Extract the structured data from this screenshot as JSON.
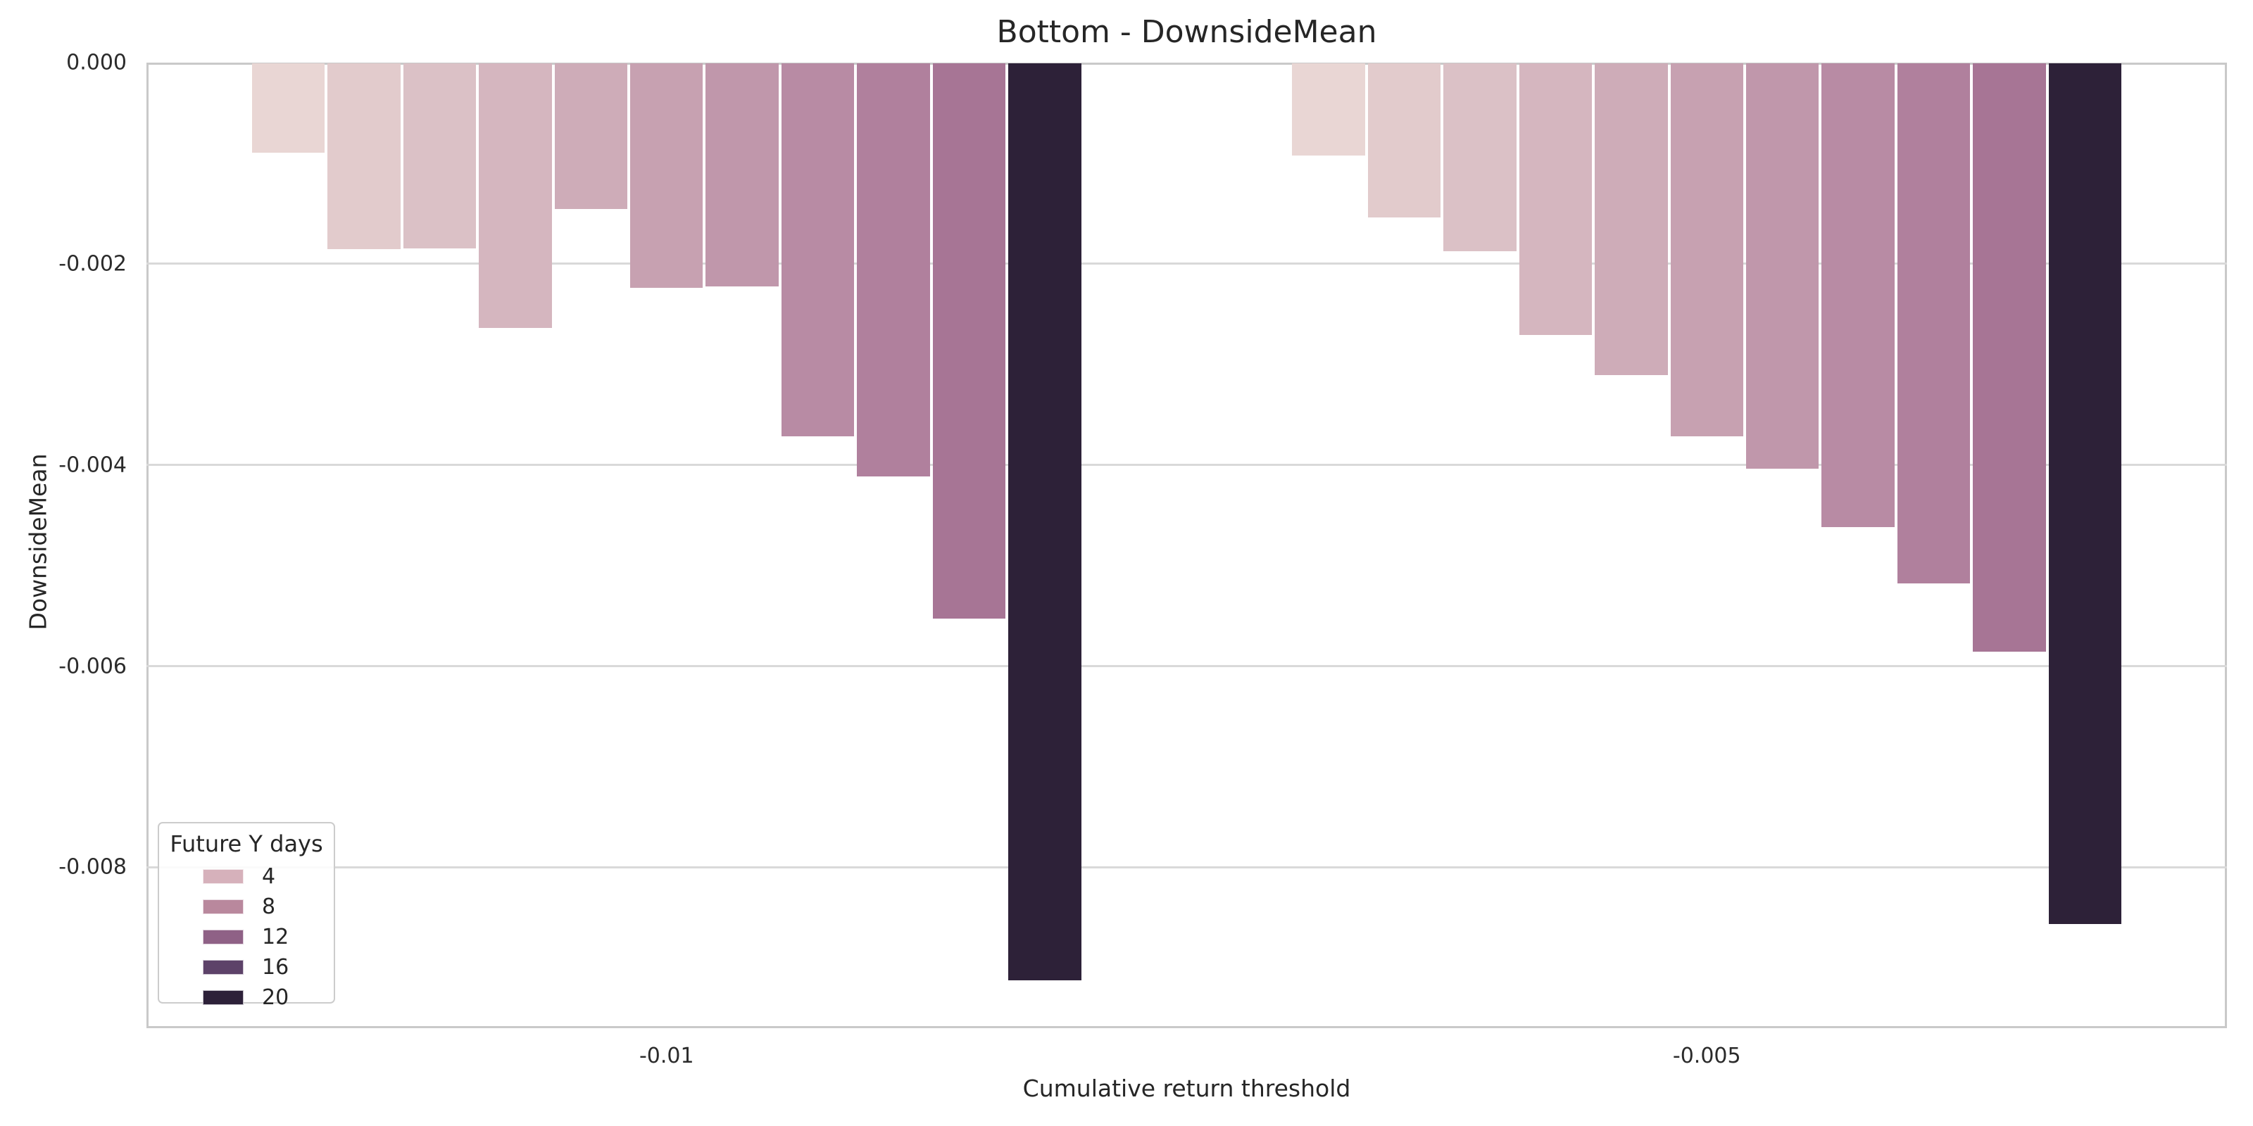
{
  "title": "Bottom - DownsideMean",
  "axes": {
    "x_label": "Cumulative return threshold",
    "y_label": "DownsideMean",
    "x_tick_labels": [
      "-0.01",
      "-0.005"
    ],
    "y_tick_labels": [
      "0.000",
      "-0.002",
      "-0.004",
      "-0.006",
      "-0.008"
    ]
  },
  "legend": {
    "title": "Future Y days",
    "entries": [
      {
        "label": "4",
        "color": "#d6b1bb"
      },
      {
        "label": "8",
        "color": "#b9889d"
      },
      {
        "label": "12",
        "color": "#8f6186"
      },
      {
        "label": "16",
        "color": "#5d4269"
      },
      {
        "label": "20",
        "color": "#2d2139"
      }
    ]
  },
  "chart_data": {
    "type": "bar",
    "title": "Bottom - DownsideMean",
    "xlabel": "Cumulative return threshold",
    "ylabel": "DownsideMean",
    "categories": [
      "-0.01",
      "-0.005"
    ],
    "legend_title": "Future Y days",
    "legend_entries": [
      "4",
      "8",
      "12",
      "16",
      "20"
    ],
    "legend_position": "lower left",
    "grid": "horizontal",
    "ylim": [
      -0.0096,
      0
    ],
    "yticks": [
      0,
      -0.002,
      -0.004,
      -0.006,
      -0.008
    ],
    "series": [
      {
        "color": "#e9d6d4",
        "values": [
          -0.00089,
          -0.00092
        ]
      },
      {
        "color": "#e2cbcc",
        "values": [
          -0.00185,
          -0.00153
        ]
      },
      {
        "color": "#dbc1c6",
        "values": [
          -0.00184,
          -0.00187
        ]
      },
      {
        "color": "#d5b6bf",
        "values": [
          -0.00263,
          -0.0027
        ]
      },
      {
        "color": "#ceacb8",
        "values": [
          -0.00145,
          -0.0031
        ]
      },
      {
        "color": "#c7a1b1",
        "values": [
          -0.00223,
          -0.00371
        ]
      },
      {
        "color": "#c097ab",
        "values": [
          -0.00222,
          -0.00403
        ]
      },
      {
        "color": "#b88ba4",
        "values": [
          -0.00371,
          -0.00461
        ]
      },
      {
        "color": "#b0809d",
        "values": [
          -0.00411,
          -0.00517
        ]
      },
      {
        "color": "#a77595",
        "values": [
          -0.00552,
          -0.00585
        ]
      },
      {
        "color": "#2d2138",
        "values": [
          -0.00912,
          -0.00856
        ]
      }
    ]
  },
  "style": {
    "spine_color": "#c9c9c9",
    "grid_color": "#d9d9d9",
    "text_color": "#262626",
    "background": "#ffffff"
  }
}
